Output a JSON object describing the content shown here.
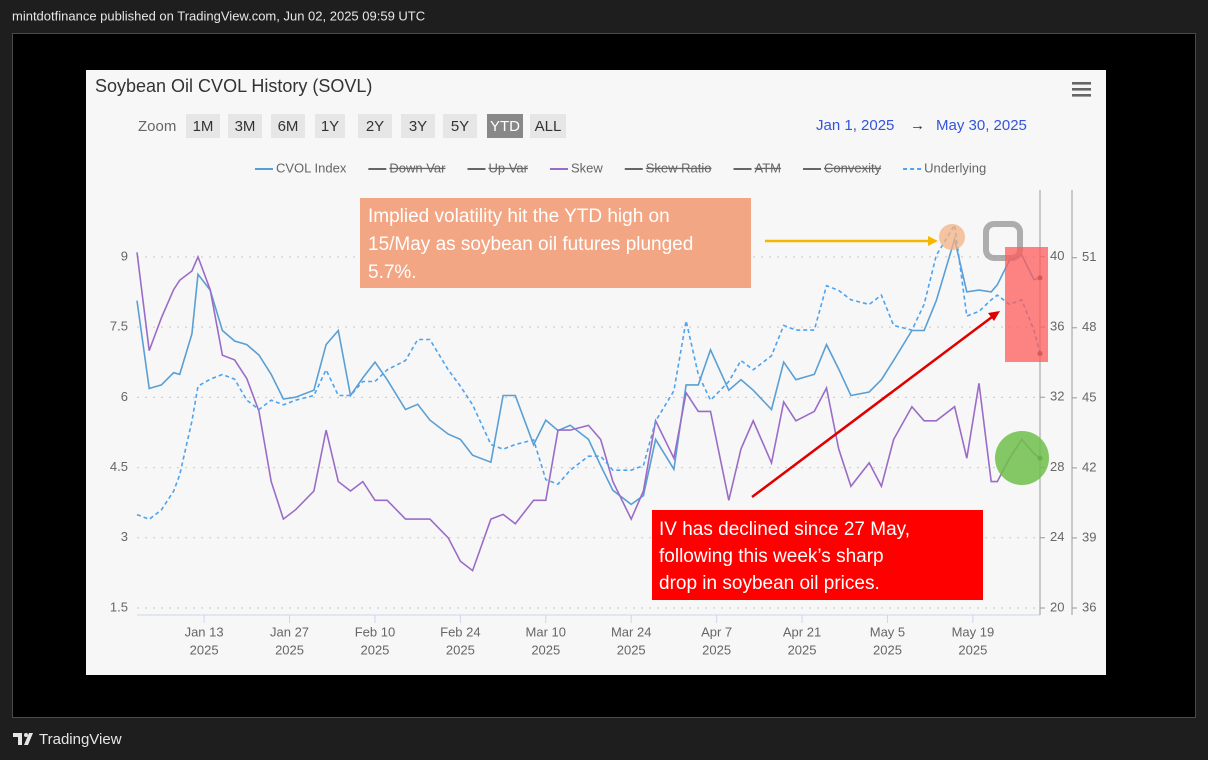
{
  "header": "mintdotfinance published on TradingView.com, Jun 02, 2025 09:59 UTC",
  "footer": "TradingView",
  "chart_data": {
    "type": "line",
    "title": "Soybean Oil CVOL History (SOVL)",
    "zoom_label": "Zoom",
    "zoom_options": [
      "1M",
      "3M",
      "6M",
      "1Y",
      "2Y",
      "3Y",
      "5Y",
      "YTD",
      "ALL"
    ],
    "zoom_selected": 7,
    "range_from": "Jan 1, 2025",
    "range_arrow": "→",
    "range_to": "May 30, 2025",
    "x": [
      "2025-01-02",
      "2025-01-04",
      "2025-01-06",
      "2025-01-08",
      "2025-01-09",
      "2025-01-11",
      "2025-01-12",
      "2025-01-14",
      "2025-01-16",
      "2025-01-18",
      "2025-01-20",
      "2025-01-22",
      "2025-01-24",
      "2025-01-26",
      "2025-01-28",
      "2025-01-31",
      "2025-02-02",
      "2025-02-04",
      "2025-02-06",
      "2025-02-08",
      "2025-02-10",
      "2025-02-12",
      "2025-02-15",
      "2025-02-17",
      "2025-02-19",
      "2025-02-22",
      "2025-02-24",
      "2025-02-26",
      "2025-03-01",
      "2025-03-03",
      "2025-03-05",
      "2025-03-08",
      "2025-03-10",
      "2025-03-12",
      "2025-03-14",
      "2025-03-17",
      "2025-03-19",
      "2025-03-21",
      "2025-03-24",
      "2025-03-26",
      "2025-03-28",
      "2025-03-31",
      "2025-04-02",
      "2025-04-04",
      "2025-04-06",
      "2025-04-09",
      "2025-04-11",
      "2025-04-13",
      "2025-04-16",
      "2025-04-18",
      "2025-04-20",
      "2025-04-23",
      "2025-04-25",
      "2025-04-27",
      "2025-04-29",
      "2025-05-02",
      "2025-05-04",
      "2025-05-06",
      "2025-05-09",
      "2025-05-11",
      "2025-05-13",
      "2025-05-16",
      "2025-05-18",
      "2025-05-20",
      "2025-05-22",
      "2025-05-23",
      "2025-05-25",
      "2025-05-27",
      "2025-05-29",
      "2025-05-30"
    ],
    "xlim": [
      "2025-01-02",
      "2025-05-30"
    ],
    "xticks": [
      {
        "value": "2025-01-13",
        "label": "Jan 13",
        "sublabel": "2025"
      },
      {
        "value": "2025-01-27",
        "label": "Jan 27",
        "sublabel": "2025"
      },
      {
        "value": "2025-02-10",
        "label": "Feb 10",
        "sublabel": "2025"
      },
      {
        "value": "2025-02-24",
        "label": "Feb 24",
        "sublabel": "2025"
      },
      {
        "value": "2025-03-10",
        "label": "Mar 10",
        "sublabel": "2025"
      },
      {
        "value": "2025-03-24",
        "label": "Mar 24",
        "sublabel": "2025"
      },
      {
        "value": "2025-04-07",
        "label": "Apr 7",
        "sublabel": "2025"
      },
      {
        "value": "2025-04-21",
        "label": "Apr 21",
        "sublabel": "2025"
      },
      {
        "value": "2025-05-05",
        "label": "May 5",
        "sublabel": "2025"
      },
      {
        "value": "2025-05-19",
        "label": "May 19",
        "sublabel": "2025"
      }
    ],
    "ylim": [
      1.5,
      10.43
    ],
    "yticks": [
      1.5,
      3,
      4.5,
      6,
      7.5,
      9
    ],
    "y2lim": [
      20,
      43.8
    ],
    "y2ticks": [
      20,
      24,
      28,
      32,
      36,
      40
    ],
    "y3lim": [
      36,
      53.9
    ],
    "y3ticks": [
      36,
      39,
      42,
      45,
      48,
      51
    ],
    "grid": true,
    "series": [
      {
        "name": "CVOL Index",
        "color": "#5a9fd4",
        "axis": "y2",
        "dashed": false,
        "visible": true,
        "values": [
          37.5,
          32.5,
          32.7,
          33.4,
          33.3,
          35.6,
          39.0,
          38.1,
          35.8,
          35.2,
          35.0,
          34.4,
          33.3,
          31.9,
          32.0,
          32.4,
          35.0,
          35.8,
          32.1,
          33.1,
          34.0,
          33.0,
          31.3,
          31.6,
          30.7,
          29.9,
          29.6,
          28.7,
          28.3,
          32.1,
          32.1,
          29.3,
          30.7,
          30.1,
          30.4,
          29.6,
          28.1,
          26.7,
          25.9,
          26.4,
          29.6,
          27.9,
          32.7,
          32.7,
          34.7,
          32.4,
          33.0,
          32.4,
          31.3,
          34.0,
          33.0,
          33.3,
          35.0,
          33.6,
          32.1,
          32.3,
          33.0,
          34.1,
          35.8,
          35.8,
          37.5,
          41.0,
          38.0,
          38.1,
          38.0,
          38.4,
          39.8,
          40.1,
          38.7,
          38.8
        ]
      },
      {
        "name": "Down Var",
        "color": "#666666",
        "visible": false
      },
      {
        "name": "Up Var",
        "color": "#666666",
        "visible": false
      },
      {
        "name": "Skew",
        "color": "#9b6cc7",
        "axis": "y",
        "dashed": false,
        "visible": true,
        "values": [
          9.1,
          7.0,
          7.7,
          8.3,
          8.5,
          8.7,
          9.0,
          8.3,
          6.9,
          6.8,
          6.4,
          5.7,
          4.2,
          3.4,
          3.6,
          4.0,
          5.3,
          4.2,
          4.0,
          4.2,
          3.8,
          3.8,
          3.4,
          3.4,
          3.4,
          3.0,
          2.5,
          2.3,
          3.4,
          3.5,
          3.3,
          3.8,
          3.8,
          5.3,
          5.3,
          5.4,
          5.1,
          4.2,
          3.4,
          4.0,
          5.5,
          4.7,
          6.1,
          5.7,
          5.7,
          3.8,
          4.9,
          5.5,
          4.6,
          5.9,
          5.5,
          5.7,
          6.2,
          4.9,
          4.1,
          4.6,
          4.1,
          5.1,
          5.8,
          5.5,
          5.5,
          5.8,
          4.7,
          6.3,
          4.2,
          4.2,
          4.7,
          5.1,
          4.8,
          4.7
        ]
      },
      {
        "name": "Skew Ratio",
        "color": "#666666",
        "visible": false
      },
      {
        "name": "ATM",
        "color": "#666666",
        "visible": false
      },
      {
        "name": "Convexity",
        "color": "#666666",
        "visible": false
      },
      {
        "name": "Underlying",
        "color": "#4da3f0",
        "axis": "y3",
        "dashed": true,
        "visible": true,
        "values": [
          40.0,
          39.8,
          40.2,
          41.0,
          41.7,
          44.0,
          45.5,
          45.8,
          46.0,
          45.8,
          44.9,
          44.5,
          44.9,
          44.7,
          44.9,
          45.1,
          46.2,
          45.1,
          45.1,
          45.7,
          45.7,
          46.2,
          46.6,
          47.5,
          47.5,
          46.2,
          45.5,
          44.7,
          43.0,
          42.8,
          43.0,
          43.2,
          41.5,
          41.3,
          41.9,
          42.5,
          42.5,
          41.9,
          41.9,
          42.1,
          44.0,
          45.3,
          48.3,
          46.0,
          44.9,
          45.7,
          46.6,
          46.2,
          46.8,
          48.1,
          47.9,
          47.9,
          49.8,
          49.6,
          49.2,
          49.0,
          49.4,
          48.1,
          47.9,
          49.0,
          51.1,
          52.4,
          48.5,
          48.7,
          49.2,
          49.4,
          49.0,
          49.2,
          47.9,
          46.9
        ]
      }
    ],
    "annotations": [
      {
        "lines": [
          "Implied volatility hit the YTD high on",
          "15/May as soybean oil futures plunged",
          "5.7%."
        ]
      },
      {
        "lines": [
          "IV has declined since 27 May,",
          "following this week’s sharp",
          "drop in soybean oil prices."
        ]
      }
    ]
  }
}
